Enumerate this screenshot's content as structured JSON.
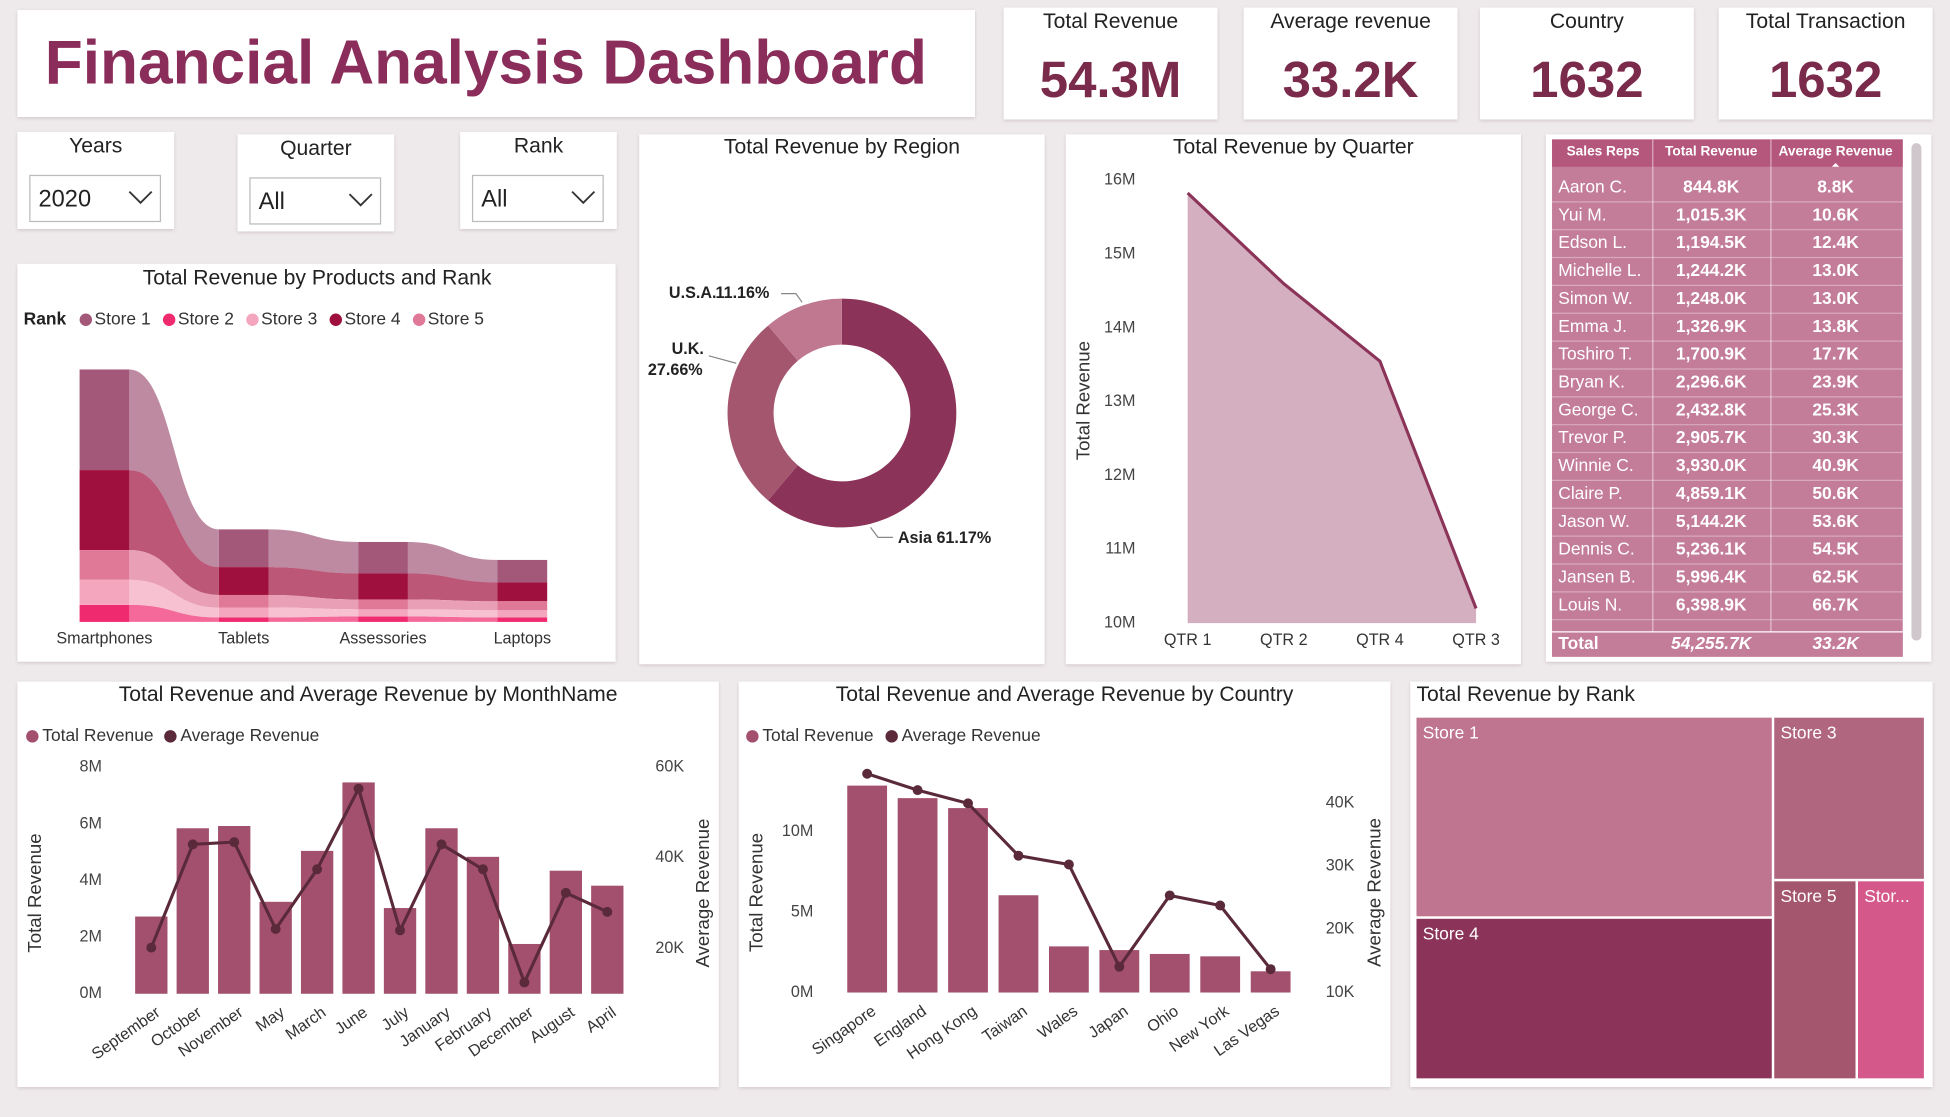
{
  "header": {
    "title": "Financial Analysis Dashboard"
  },
  "kpis": [
    {
      "label": "Total Revenue",
      "value": "54.3M"
    },
    {
      "label": "Average revenue",
      "value": "33.2K"
    },
    {
      "label": "Country",
      "value": "1632"
    },
    {
      "label": "Total Transaction",
      "value": "1632"
    }
  ],
  "filters": [
    {
      "label": "Years",
      "value": "2020"
    },
    {
      "label": "Quarter",
      "value": "All"
    },
    {
      "label": "Rank",
      "value": "All"
    }
  ],
  "table": {
    "columns": [
      "Sales Reps",
      "Total Revenue",
      "Average Revenue"
    ],
    "rows": [
      [
        "Aaron C.",
        "844.8K",
        "8.8K"
      ],
      [
        "Yui M.",
        "1,015.3K",
        "10.6K"
      ],
      [
        "Edson L.",
        "1,194.5K",
        "12.4K"
      ],
      [
        "Michelle L.",
        "1,244.2K",
        "13.0K"
      ],
      [
        "Simon W.",
        "1,248.0K",
        "13.0K"
      ],
      [
        "Emma J.",
        "1,326.9K",
        "13.8K"
      ],
      [
        "Toshiro T.",
        "1,700.9K",
        "17.7K"
      ],
      [
        "Bryan K.",
        "2,296.6K",
        "23.9K"
      ],
      [
        "George C.",
        "2,432.8K",
        "25.3K"
      ],
      [
        "Trevor P.",
        "2,905.7K",
        "30.3K"
      ],
      [
        "Winnie C.",
        "3,930.0K",
        "40.9K"
      ],
      [
        "Claire P.",
        "4,859.1K",
        "50.6K"
      ],
      [
        "Jason W.",
        "5,144.2K",
        "53.6K"
      ],
      [
        "Dennis C.",
        "5,236.1K",
        "54.5K"
      ],
      [
        "Jansen B.",
        "5,996.4K",
        "62.5K"
      ],
      [
        "Louis N.",
        "6,398.9K",
        "66.7K"
      ]
    ],
    "total": [
      "Total",
      "54,255.7K",
      "33.2K"
    ]
  },
  "chart_data": [
    {
      "type": "ribbon",
      "title": "Total Revenue by Products and Rank",
      "legend_title": "Rank",
      "categories": [
        "Smartphones",
        "Tablets",
        "Assessories",
        "Laptops"
      ],
      "series": [
        {
          "name": "Store 1",
          "color": "#a3587a",
          "values": [
            11.2,
            4.2,
            3.5,
            2.5
          ]
        },
        {
          "name": "Store 2",
          "color": "#ef2a6f",
          "values": [
            1.9,
            0.5,
            0.6,
            0.5
          ]
        },
        {
          "name": "Store 3",
          "color": "#f4a6be",
          "values": [
            2.8,
            1.1,
            0.8,
            0.8
          ]
        },
        {
          "name": "Store 4",
          "color": "#a0103f",
          "values": [
            8.9,
            3.1,
            2.9,
            2.1
          ]
        },
        {
          "name": "Store 5",
          "color": "#e07898",
          "values": [
            3.3,
            1.4,
            1.1,
            1.0
          ]
        }
      ]
    },
    {
      "type": "donut",
      "title": "Total Revenue by Region",
      "categories": [
        "Asia",
        "U.K.",
        "U.S.A."
      ],
      "values": [
        61.17,
        27.66,
        11.16
      ],
      "value_labels": [
        "61.17%",
        "27.66%",
        "11.16%"
      ],
      "colors": [
        "#8b3358",
        "#a5566f",
        "#c07890"
      ]
    },
    {
      "type": "area",
      "title": "Total Revenue by Quarter",
      "y_label": "Total Revenue",
      "categories": [
        "QTR 1",
        "QTR 2",
        "QTR 4",
        "QTR 3"
      ],
      "values": [
        15.83,
        14.6,
        13.55,
        10.2
      ],
      "color": "#d4afbf",
      "line_color": "#8b3358",
      "ylim": [
        10,
        16
      ],
      "yticks": [
        {
          "value": 10,
          "label": "10M"
        },
        {
          "value": 11,
          "label": "11M"
        },
        {
          "value": 12,
          "label": "12M"
        },
        {
          "value": 13,
          "label": "13M"
        },
        {
          "value": 14,
          "label": "14M"
        },
        {
          "value": 15,
          "label": "15M"
        },
        {
          "value": 16,
          "label": "16M"
        }
      ]
    },
    {
      "type": "combo",
      "title": "Total Revenue and Average Revenue by MonthName",
      "y_label": "Total Revenue",
      "y2_label": "Average Revenue",
      "categories": [
        "September",
        "October",
        "November",
        "May",
        "March",
        "June",
        "July",
        "January",
        "February",
        "December",
        "August",
        "April"
      ],
      "series": [
        {
          "name": "Total Revenue",
          "type": "bar",
          "color": "#a3506f",
          "values": [
            2.73,
            5.85,
            5.93,
            3.25,
            5.05,
            7.47,
            3.03,
            5.85,
            4.84,
            1.76,
            4.35,
            3.82
          ]
        },
        {
          "name": "Average Revenue",
          "type": "line",
          "axis": "y2",
          "color": "#5a2a3a",
          "values": [
            20.2,
            43,
            43.5,
            24.3,
            37.5,
            55.3,
            24,
            43,
            37.5,
            12.5,
            32.3,
            28.1
          ]
        }
      ],
      "ylim": [
        0,
        8
      ],
      "yticks": [
        {
          "value": 0,
          "label": "0M"
        },
        {
          "value": 2,
          "label": "2M"
        },
        {
          "value": 4,
          "label": "4M"
        },
        {
          "value": 6,
          "label": "6M"
        },
        {
          "value": 8,
          "label": "8M"
        }
      ],
      "y2lim": [
        10,
        60
      ],
      "y2ticks": [
        {
          "value": 20,
          "label": "20K"
        },
        {
          "value": 40,
          "label": "40K"
        },
        {
          "value": 60,
          "label": "60K"
        }
      ]
    },
    {
      "type": "combo",
      "title": "Total Revenue and Average Revenue by Country",
      "y_label": "Total Revenue",
      "y2_label": "Average Revenue",
      "categories": [
        "Singapore",
        "England",
        "Hong Kong",
        "Taiwan",
        "Wales",
        "Japan",
        "Ohio",
        "New York",
        "Las Vegas"
      ],
      "series": [
        {
          "name": "Total Revenue",
          "type": "bar",
          "color": "#a3506f",
          "values": [
            12.87,
            12.09,
            11.47,
            6.05,
            2.87,
            2.64,
            2.4,
            2.25,
            1.32
          ]
        },
        {
          "name": "Average Revenue",
          "type": "line",
          "axis": "y2",
          "color": "#5a2a3a",
          "values": [
            44.7,
            42.1,
            40,
            31.7,
            30.3,
            14.1,
            25.4,
            23.8,
            13.7
          ]
        }
      ],
      "ylim": [
        0,
        14
      ],
      "yticks": [
        {
          "value": 0,
          "label": "0M"
        },
        {
          "value": 5,
          "label": "5M"
        },
        {
          "value": 10,
          "label": "10M"
        }
      ],
      "y2lim": [
        10,
        45.7
      ],
      "y2ticks": [
        {
          "value": 10,
          "label": "10K"
        },
        {
          "value": 20,
          "label": "20K"
        },
        {
          "value": 30,
          "label": "30K"
        },
        {
          "value": 40,
          "label": "40K"
        }
      ]
    },
    {
      "type": "treemap",
      "title": "Total Revenue by Rank",
      "categories": [
        "Store 1",
        "Store 4",
        "Store 3",
        "Store 5",
        "Stor..."
      ],
      "values": [
        21.1,
        17.0,
        7.3,
        4.9,
        4.0
      ],
      "colors": [
        "#bf7490",
        "#8b3358",
        "#b0667f",
        "#a5566f",
        "#d4588a"
      ]
    }
  ]
}
